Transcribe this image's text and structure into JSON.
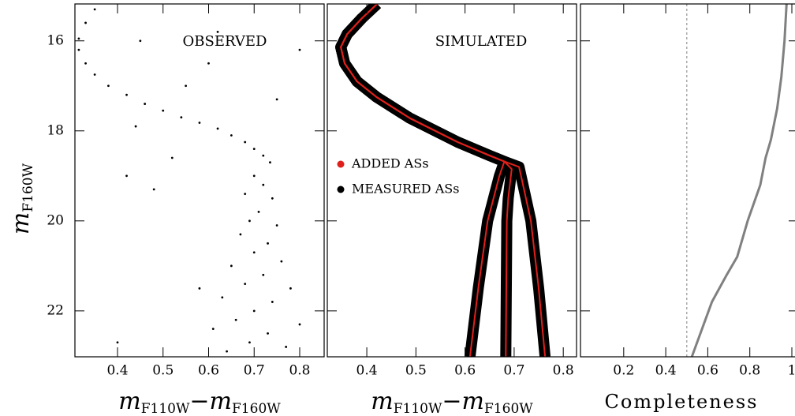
{
  "chart_data": [
    {
      "type": "scatter",
      "title": "OBSERVED",
      "xlabel": [
        "m",
        "F110W",
        "−m",
        "F160W"
      ],
      "ylabel": [
        "m",
        "F160W"
      ],
      "xlim": [
        0.3065,
        0.8537
      ],
      "ylim": [
        23.02,
        15.18
      ],
      "xticks": [
        0.4,
        0.5,
        0.6,
        0.7,
        0.8
      ],
      "yticks": [
        16,
        18,
        20,
        22
      ],
      "series": [
        {
          "color": "#000000",
          "x": [
            0.35,
            0.33,
            0.315,
            0.315,
            0.33,
            0.35,
            0.38,
            0.42,
            0.46,
            0.5,
            0.54,
            0.58,
            0.62,
            0.65,
            0.68,
            0.7,
            0.72,
            0.735,
            0.7,
            0.72,
            0.68,
            0.74,
            0.71,
            0.69,
            0.75,
            0.67,
            0.73,
            0.7,
            0.76,
            0.65,
            0.72,
            0.68,
            0.78,
            0.63,
            0.74,
            0.7,
            0.66,
            0.8,
            0.61,
            0.73,
            0.69,
            0.77,
            0.64,
            0.45,
            0.55,
            0.6,
            0.42,
            0.48,
            0.58,
            0.4,
            0.52,
            0.75,
            0.8,
            0.62,
            0.44
          ],
          "values": [
            15.3,
            15.6,
            15.95,
            16.2,
            16.5,
            16.75,
            17.0,
            17.2,
            17.4,
            17.55,
            17.7,
            17.82,
            17.95,
            18.1,
            18.25,
            18.4,
            18.55,
            18.7,
            19.0,
            19.2,
            19.4,
            19.5,
            19.8,
            20.0,
            20.1,
            20.3,
            20.5,
            20.7,
            20.9,
            21.0,
            21.2,
            21.4,
            21.5,
            21.7,
            21.8,
            22.0,
            22.2,
            22.3,
            22.4,
            22.5,
            22.7,
            22.8,
            22.9,
            16.0,
            17.0,
            16.5,
            19.0,
            19.3,
            21.5,
            22.7,
            18.6,
            17.3,
            16.2,
            15.8,
            17.9
          ]
        }
      ]
    },
    {
      "type": "line",
      "title": "SIMULATED",
      "xlabel": [
        "m",
        "F110W",
        "−m",
        "F160W"
      ],
      "xlim": [
        0.3196,
        0.827
      ],
      "ylim": [
        23.02,
        15.18
      ],
      "xticks": [
        0.4,
        0.5,
        0.6,
        0.7,
        0.8
      ],
      "yticks": [
        16,
        18,
        20,
        22
      ],
      "series": [
        {
          "name": "MEASURED ASs",
          "color": "#000000",
          "lines": [
            {
              "x": [
                0.421,
                0.39,
                0.36,
                0.347,
                0.355,
                0.38,
                0.42,
                0.488,
                0.585,
                0.65,
                0.68,
                0.67,
                0.646,
                0.627,
                0.61
              ],
              "values": [
                15.18,
                15.5,
                15.85,
                16.14,
                16.5,
                16.9,
                17.25,
                17.72,
                18.25,
                18.55,
                18.68,
                19.0,
                20.0,
                21.5,
                23.02
              ]
            },
            {
              "x": [
                0.421,
                0.39,
                0.36,
                0.347,
                0.355,
                0.38,
                0.42,
                0.488,
                0.585,
                0.65,
                0.68,
                0.695,
                0.688,
                0.685,
                0.683
              ],
              "values": [
                15.18,
                15.5,
                15.85,
                16.14,
                16.5,
                16.9,
                17.25,
                17.72,
                18.25,
                18.55,
                18.68,
                18.85,
                19.5,
                20.0,
                23.02
              ]
            },
            {
              "x": [
                0.421,
                0.39,
                0.36,
                0.347,
                0.355,
                0.38,
                0.42,
                0.488,
                0.585,
                0.65,
                0.68,
                0.71,
                0.72,
                0.734,
                0.75,
                0.763
              ],
              "values": [
                15.18,
                15.5,
                15.85,
                16.14,
                16.5,
                16.9,
                17.25,
                17.72,
                18.25,
                18.55,
                18.68,
                18.8,
                19.3,
                20.0,
                21.5,
                23.02
              ]
            }
          ]
        },
        {
          "name": "ADDED ASs",
          "color": "#e0201b",
          "lines": [
            {
              "x": [
                0.421,
                0.39,
                0.36,
                0.347,
                0.355,
                0.38,
                0.42,
                0.488,
                0.585,
                0.65,
                0.68,
                0.67,
                0.646,
                0.627,
                0.61
              ],
              "values": [
                15.18,
                15.5,
                15.85,
                16.14,
                16.5,
                16.9,
                17.25,
                17.72,
                18.25,
                18.55,
                18.68,
                19.0,
                20.0,
                21.5,
                23.02
              ]
            },
            {
              "x": [
                0.421,
                0.39,
                0.36,
                0.347,
                0.355,
                0.38,
                0.42,
                0.488,
                0.585,
                0.65,
                0.68,
                0.695,
                0.688,
                0.685,
                0.683
              ],
              "values": [
                15.18,
                15.5,
                15.85,
                16.14,
                16.5,
                16.9,
                17.25,
                17.72,
                18.25,
                18.55,
                18.68,
                18.85,
                19.5,
                20.0,
                23.02
              ]
            },
            {
              "x": [
                0.421,
                0.39,
                0.36,
                0.347,
                0.355,
                0.38,
                0.42,
                0.488,
                0.585,
                0.65,
                0.68,
                0.71,
                0.72,
                0.734,
                0.75,
                0.763
              ],
              "values": [
                15.18,
                15.5,
                15.85,
                16.14,
                16.5,
                16.9,
                17.25,
                17.72,
                18.25,
                18.55,
                18.68,
                18.8,
                19.3,
                20.0,
                21.5,
                23.02
              ]
            }
          ]
        }
      ]
    },
    {
      "type": "line",
      "xlabel": [
        "Completeness"
      ],
      "xlim": [
        -0.0057,
        1.03
      ],
      "ylim": [
        23.02,
        15.18
      ],
      "xticks": [
        0.2,
        0.4,
        0.6,
        0.8,
        1
      ],
      "yticks": [
        16,
        18,
        20,
        22
      ],
      "reference_x": 0.5,
      "series": [
        {
          "color": "#808080",
          "lines": [
            {
              "x": [
                0.975,
                0.965,
                0.95,
                0.93,
                0.9,
                0.875,
                0.85,
                0.79,
                0.74,
                0.69,
                0.62,
                0.524
              ],
              "values": [
                15.18,
                16.0,
                16.8,
                17.5,
                18.2,
                18.6,
                19.2,
                20.0,
                20.8,
                21.2,
                21.8,
                23.02
              ]
            }
          ]
        }
      ]
    }
  ]
}
